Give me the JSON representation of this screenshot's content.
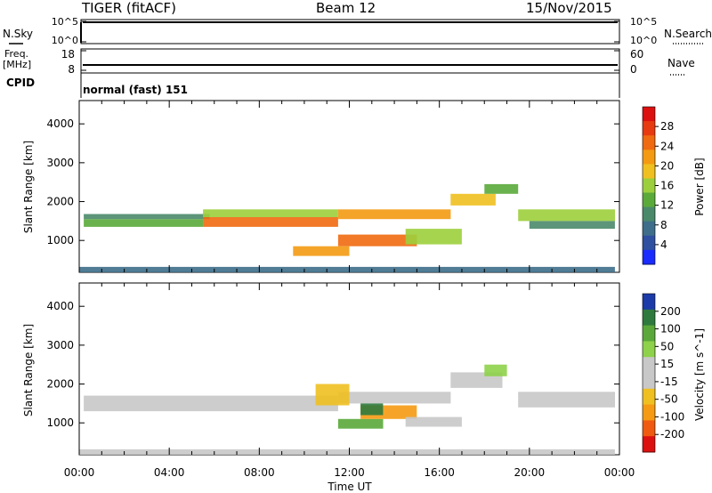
{
  "header": {
    "station": "TIGER (fitACF)",
    "beam": "Beam 12",
    "date": "15/Nov/2015"
  },
  "top_panels": {
    "nsky_label": "N.Sky",
    "nsearch_label": "N.Search",
    "nsky_ticks": [
      "10^5",
      "10^0"
    ],
    "nsearch_ticks": [
      "10^5",
      "10^0"
    ],
    "freq_label": "Freq.",
    "freq_unit": "[MHz]",
    "freq_ticks": [
      "18",
      "8"
    ],
    "nave_label": "Nave",
    "nave_ticks": [
      "60",
      "0"
    ],
    "cpid_label": "CPID",
    "cpid_text": "normal (fast) 151"
  },
  "colors": {
    "power": [
      "#1a2bff",
      "#2f4fa0",
      "#3e6e8a",
      "#4a8a6a",
      "#5aaa3a",
      "#9ccf3c",
      "#f0c020",
      "#f39a12",
      "#ef6a10",
      "#e83a10",
      "#dd1010"
    ],
    "velocity_pos": [
      "#1c3ba8",
      "#2e7a3e",
      "#5aa83a",
      "#8ed14a"
    ],
    "velocity_neutral": "#c8c8c8",
    "velocity_neg": [
      "#f0c020",
      "#f59a12",
      "#ef5a10",
      "#dd1010"
    ]
  },
  "chart_data": {
    "type": "heatmap",
    "xlabel": "Time UT",
    "x_tick_labels": [
      "00:00",
      "04:00",
      "08:00",
      "12:00",
      "16:00",
      "20:00",
      "00:00"
    ],
    "xlim_hours": [
      0,
      24
    ],
    "panels": [
      {
        "name": "power",
        "ylabel": "Slant Range [km]",
        "ylim": [
          180,
          4600
        ],
        "y_ticks": [
          1000,
          2000,
          3000,
          4000
        ],
        "colorbar_label": "Power [dB]",
        "colorbar_ticks": [
          "28",
          "24",
          "20",
          "16",
          "12",
          "8",
          "4"
        ],
        "colorbar_range": [
          0,
          32
        ],
        "bands": [
          {
            "t_start": 0.2,
            "t_end": 5.5,
            "r_start": 1350,
            "r_end": 1550,
            "value": 14
          },
          {
            "t_start": 0.2,
            "t_end": 5.8,
            "r_start": 1550,
            "r_end": 1680,
            "value": 11
          },
          {
            "t_start": 5.5,
            "t_end": 11.5,
            "r_start": 1350,
            "r_end": 1600,
            "value": 24
          },
          {
            "t_start": 5.5,
            "t_end": 11.5,
            "r_start": 1600,
            "r_end": 1800,
            "value": 17
          },
          {
            "t_start": 11.5,
            "t_end": 16.5,
            "r_start": 1550,
            "r_end": 1800,
            "value": 21
          },
          {
            "t_start": 11.5,
            "t_end": 15.0,
            "r_start": 850,
            "r_end": 1150,
            "value": 26
          },
          {
            "t_start": 9.5,
            "t_end": 12.0,
            "r_start": 600,
            "r_end": 850,
            "value": 22
          },
          {
            "t_start": 14.5,
            "t_end": 17.0,
            "r_start": 900,
            "r_end": 1300,
            "value": 16
          },
          {
            "t_start": 16.5,
            "t_end": 18.5,
            "r_start": 1900,
            "r_end": 2200,
            "value": 18
          },
          {
            "t_start": 18.0,
            "t_end": 19.5,
            "r_start": 2200,
            "r_end": 2450,
            "value": 14
          },
          {
            "t_start": 19.5,
            "t_end": 23.8,
            "r_start": 1500,
            "r_end": 1800,
            "value": 16
          },
          {
            "t_start": 20.0,
            "t_end": 23.8,
            "r_start": 1300,
            "r_end": 1500,
            "value": 10
          },
          {
            "t_start": 0.0,
            "t_end": 23.8,
            "r_start": 180,
            "r_end": 320,
            "value": 6
          }
        ]
      },
      {
        "name": "velocity",
        "ylabel": "Slant Range [km]",
        "ylim": [
          180,
          4600
        ],
        "y_ticks": [
          1000,
          2000,
          3000,
          4000
        ],
        "colorbar_label": "Velocity [m s^-1]",
        "colorbar_ticks": [
          "200",
          "100",
          "50",
          "15",
          "-15",
          "-50",
          "-100",
          "-200"
        ],
        "colorbar_range": [
          -250,
          250
        ],
        "bands": [
          {
            "t_start": 0.2,
            "t_end": 11.5,
            "r_start": 1300,
            "r_end": 1700,
            "value": 0
          },
          {
            "t_start": 11.5,
            "t_end": 16.5,
            "r_start": 1500,
            "r_end": 1800,
            "value": 0
          },
          {
            "t_start": 16.5,
            "t_end": 18.8,
            "r_start": 1900,
            "r_end": 2300,
            "value": 0
          },
          {
            "t_start": 18.0,
            "t_end": 19.0,
            "r_start": 2200,
            "r_end": 2500,
            "value": 30
          },
          {
            "t_start": 19.5,
            "t_end": 23.8,
            "r_start": 1400,
            "r_end": 1800,
            "value": 0
          },
          {
            "t_start": 11.5,
            "t_end": 13.5,
            "r_start": 850,
            "r_end": 1100,
            "value": 60
          },
          {
            "t_start": 12.5,
            "t_end": 15.0,
            "r_start": 1100,
            "r_end": 1450,
            "value": -80
          },
          {
            "t_start": 10.5,
            "t_end": 12.0,
            "r_start": 1450,
            "r_end": 2000,
            "value": -40
          },
          {
            "t_start": 12.5,
            "t_end": 13.5,
            "r_start": 1200,
            "r_end": 1500,
            "value": 180
          },
          {
            "t_start": 14.5,
            "t_end": 17.0,
            "r_start": 900,
            "r_end": 1150,
            "value": 0
          },
          {
            "t_start": 0.0,
            "t_end": 23.8,
            "r_start": 180,
            "r_end": 320,
            "value": 10
          }
        ]
      }
    ]
  }
}
